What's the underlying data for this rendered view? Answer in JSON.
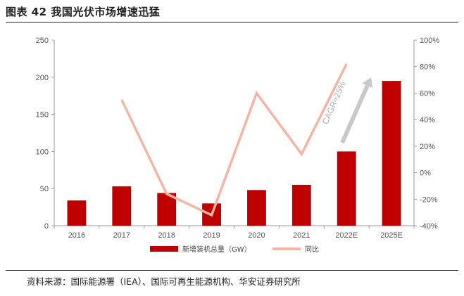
{
  "figure": {
    "title": "图表 42 我国光伏市场增速迅猛",
    "source": "资料来源：国际能源署（IEA）、国际可再生能源机构、华安证券研究所"
  },
  "chart_data": {
    "type": "bar",
    "categories": [
      "2016",
      "2017",
      "2018",
      "2019",
      "2020",
      "2021",
      "2022E",
      "2025E"
    ],
    "series": [
      {
        "name": "新增装机总量（GW）",
        "type": "bar",
        "axis": "left",
        "color": "#c00000",
        "values": [
          34,
          53,
          44,
          30,
          48,
          55,
          100,
          195
        ]
      },
      {
        "name": "同比",
        "type": "line",
        "axis": "right",
        "color": "#f4b6a4",
        "values": [
          null,
          55,
          -16,
          -32,
          60,
          14,
          82,
          null
        ]
      }
    ],
    "ylim": [
      0,
      250
    ],
    "yticks": [
      "0",
      "50",
      "100",
      "150",
      "200",
      "250"
    ],
    "y2lim": [
      -40,
      100
    ],
    "y2ticks": [
      "-40%",
      "-20%",
      "0%",
      "20%",
      "40%",
      "60%",
      "80%",
      "100%"
    ],
    "annotation": {
      "text": "CAGR≈25%",
      "color": "#bfbfbf"
    },
    "legend_position": "bottom",
    "grid": false
  }
}
